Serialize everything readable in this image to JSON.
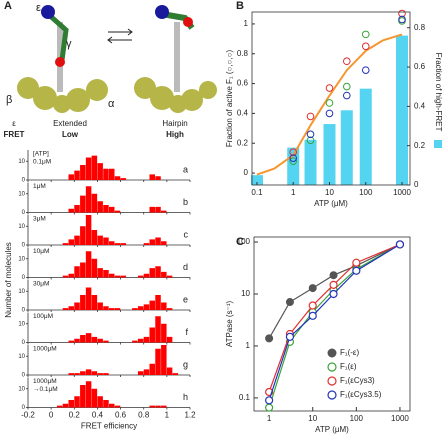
{
  "illustration": {
    "epsilon_top": "ε",
    "gamma": "γ",
    "beta": "β",
    "alpha": "α",
    "epsilon_bottom": "ε",
    "fret": "FRET",
    "extended": "Extended",
    "low": "Low",
    "hairpin": "Hairpin",
    "high": "High"
  },
  "chart_data": [
    {
      "type": "histogram",
      "panel": "A",
      "x_label": "FRET efficiency",
      "y_label": "Number of molecules",
      "bins": [
        -0.2,
        -0.15,
        -0.1,
        -0.05,
        0,
        0.05,
        0.1,
        0.15,
        0.2,
        0.25,
        0.3,
        0.35,
        0.4,
        0.45,
        0.5,
        0.55,
        0.6,
        0.65,
        0.7,
        0.75,
        0.8,
        0.85,
        0.9,
        0.95,
        1,
        1.05,
        1.1,
        1.15,
        1.2
      ],
      "xlim": [
        -0.2,
        1.2
      ],
      "xticks": [
        -0.2,
        0,
        0.2,
        0.4,
        0.6,
        0.8,
        1,
        1.2
      ],
      "ylim": [
        0,
        16
      ],
      "yticks": [
        0,
        10
      ],
      "color": "#ff0000",
      "series": [
        {
          "label": [
            "[ATP]",
            "0.1μM"
          ],
          "tag": "a",
          "values": [
            0,
            0,
            0,
            0,
            0,
            0,
            0,
            3,
            5,
            8,
            12,
            13,
            9,
            6,
            6,
            2,
            1,
            0,
            0,
            0,
            0,
            3,
            2,
            0,
            0,
            0,
            0,
            0
          ]
        },
        {
          "label": [
            "1μM"
          ],
          "tag": "b",
          "values": [
            0,
            0,
            0,
            0,
            0,
            0,
            0,
            2,
            4,
            9,
            14,
            10,
            6,
            4,
            3,
            1,
            0,
            0,
            0,
            0,
            0,
            3,
            3,
            1,
            0,
            0,
            0,
            0
          ]
        },
        {
          "label": [
            "3μM"
          ],
          "tag": "c",
          "values": [
            0,
            0,
            0,
            0,
            0,
            0,
            1,
            3,
            5,
            10,
            16,
            8,
            5,
            4,
            2,
            1,
            1,
            0,
            0,
            0,
            1,
            3,
            4,
            2,
            0,
            0,
            0,
            0
          ]
        },
        {
          "label": [
            "10μM"
          ],
          "tag": "d",
          "values": [
            0,
            0,
            0,
            0,
            0,
            0,
            1,
            2,
            6,
            8,
            14,
            10,
            5,
            4,
            2,
            1,
            1,
            0,
            0,
            1,
            2,
            5,
            6,
            3,
            1,
            0,
            0,
            0
          ]
        },
        {
          "label": [
            "30μM"
          ],
          "tag": "e",
          "values": [
            0,
            0,
            0,
            0,
            0,
            0,
            1,
            2,
            4,
            8,
            12,
            8,
            4,
            2,
            1,
            1,
            0,
            0,
            1,
            2,
            3,
            5,
            8,
            4,
            1,
            0,
            0,
            0
          ]
        },
        {
          "label": [
            "100μM"
          ],
          "tag": "f",
          "values": [
            0,
            0,
            0,
            0,
            0,
            0,
            0,
            1,
            2,
            4,
            5,
            3,
            2,
            1,
            0,
            0,
            0,
            0,
            1,
            2,
            3,
            8,
            14,
            10,
            3,
            0,
            0,
            0
          ]
        },
        {
          "label": [
            "1000μM"
          ],
          "tag": "g",
          "values": [
            0,
            0,
            0,
            0,
            0,
            0,
            0,
            1,
            1,
            2,
            3,
            2,
            1,
            1,
            0,
            0,
            0,
            0,
            0,
            2,
            3,
            6,
            14,
            16,
            4,
            1,
            0,
            0
          ]
        },
        {
          "label": [
            "1000μM",
            "→0.1μM"
          ],
          "tag": "h",
          "values": [
            0,
            0,
            0,
            0,
            0,
            1,
            2,
            4,
            6,
            12,
            14,
            10,
            6,
            4,
            2,
            1,
            0,
            0,
            0,
            0,
            0,
            1,
            1,
            1,
            0,
            0,
            0,
            0
          ]
        }
      ]
    },
    {
      "type": "combo",
      "panel": "B",
      "x_label": "ATP (μM)",
      "y_label": "Fraction of active F₁ (○,○,○)",
      "y2_label": "Fraction of high-FRET",
      "xscale": "log",
      "xlim": [
        0.073,
        1660
      ],
      "xticks": [
        0.1,
        1,
        10,
        100,
        1000
      ],
      "ylim": [
        -0.08,
        1.08
      ],
      "yticks": [
        0,
        0.2,
        0.4,
        0.6,
        0.8,
        1
      ],
      "y2lim": [
        0,
        0.88
      ],
      "y2ticks": [
        0,
        0.2,
        0.4,
        0.6,
        0.8
      ],
      "series": [
        {
          "kind": "bar",
          "axis": "y2",
          "color": "#55d4f2",
          "x": [
            0.1,
            1,
            3,
            10,
            30,
            100,
            1000
          ],
          "values": [
            0.05,
            0.19,
            0.23,
            0.31,
            0.38,
            0.49,
            0.76
          ]
        },
        {
          "kind": "line",
          "color": "#f5962f",
          "x": [
            0.1,
            0.3,
            1,
            3,
            10,
            30,
            100,
            300,
            1000
          ],
          "values": [
            -0.01,
            0.03,
            0.12,
            0.32,
            0.52,
            0.69,
            0.82,
            0.89,
            0.93
          ]
        },
        {
          "kind": "scatter",
          "color": "#e03030",
          "x": [
            1,
            3,
            10,
            30,
            100,
            1000
          ],
          "values": [
            0.14,
            0.38,
            0.57,
            0.75,
            0.85,
            1.07
          ]
        },
        {
          "kind": "scatter",
          "color": "#3aa53a",
          "x": [
            1,
            3,
            10,
            30,
            100,
            1000
          ],
          "values": [
            0.08,
            0.22,
            0.47,
            0.58,
            0.93,
            1.02
          ]
        },
        {
          "kind": "scatter",
          "color": "#2233bb",
          "x": [
            1,
            3,
            10,
            30,
            100,
            1000
          ],
          "values": [
            0.1,
            0.26,
            0.4,
            0.52,
            0.69,
            1.03
          ]
        }
      ]
    },
    {
      "type": "line",
      "panel": "C",
      "x_label": "ATP (μM)",
      "y_label": "ATPase (s⁻¹)",
      "xscale": "log",
      "yscale": "log",
      "xlim": [
        0.45,
        1700
      ],
      "xticks": [
        1,
        10,
        100,
        1000
      ],
      "ylim": [
        0.056,
        125
      ],
      "yticks": [
        0.1,
        1,
        10,
        100
      ],
      "x": [
        1,
        3,
        10,
        30,
        100,
        1000
      ],
      "series": [
        {
          "name": "F₁(-ε)",
          "color": "#555555",
          "marker": "filled",
          "values": [
            1.4,
            7,
            13,
            23,
            35,
            90
          ]
        },
        {
          "name": "F₁(ε)",
          "color": "#3aa53a",
          "marker": "open",
          "values": [
            0.065,
            1.2,
            4.5,
            12,
            30,
            90
          ]
        },
        {
          "name": "F₁(εCys3)",
          "color": "#e03030",
          "marker": "open",
          "values": [
            0.13,
            1.7,
            6,
            15,
            40,
            90
          ]
        },
        {
          "name": "F₁(εCys3.5)",
          "color": "#2233bb",
          "marker": "open",
          "values": [
            0.09,
            1.5,
            3.8,
            10,
            28,
            90
          ]
        }
      ]
    }
  ]
}
